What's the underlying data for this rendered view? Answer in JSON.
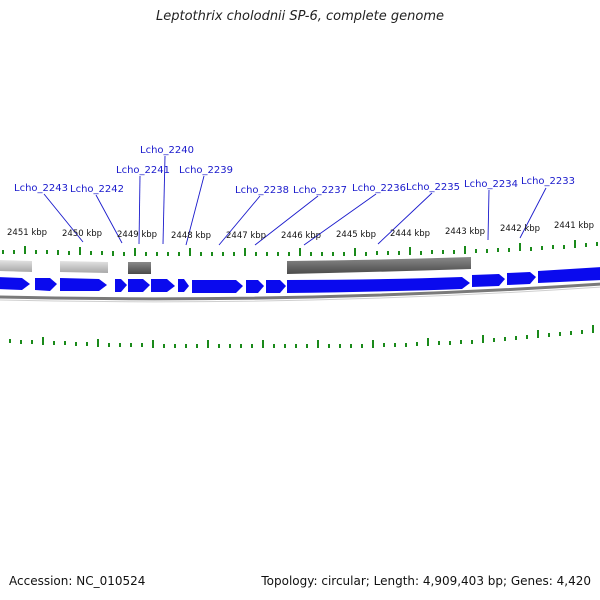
{
  "title": "Leptothrix cholodnii SP-6, complete genome",
  "footer": {
    "accession": "Accession: NC_010524",
    "summary": "Topology: circular; Length: 4,909,403 bp; Genes: 4,420"
  },
  "colors": {
    "gene_forward": "#0a0aee",
    "gene_label": "#1a1acc",
    "tick": "#1a8a1a",
    "backbone": "#7a7a7a"
  },
  "genome_map": {
    "kbp_ticks": [
      "2451 kbp",
      "2450 kbp",
      "2449 kbp",
      "2448 kbp",
      "2447 kbp",
      "2446 kbp",
      "2445 kbp",
      "2444 kbp",
      "2443 kbp",
      "2442 kbp",
      "2441 kbp"
    ],
    "gene_labels": [
      "Lcho_2243",
      "Lcho_2242",
      "Lcho_2241",
      "Lcho_2240",
      "Lcho_2239",
      "Lcho_2238",
      "Lcho_2237",
      "Lcho_2236",
      "Lcho_2235",
      "Lcho_2234",
      "Lcho_2233"
    ]
  }
}
